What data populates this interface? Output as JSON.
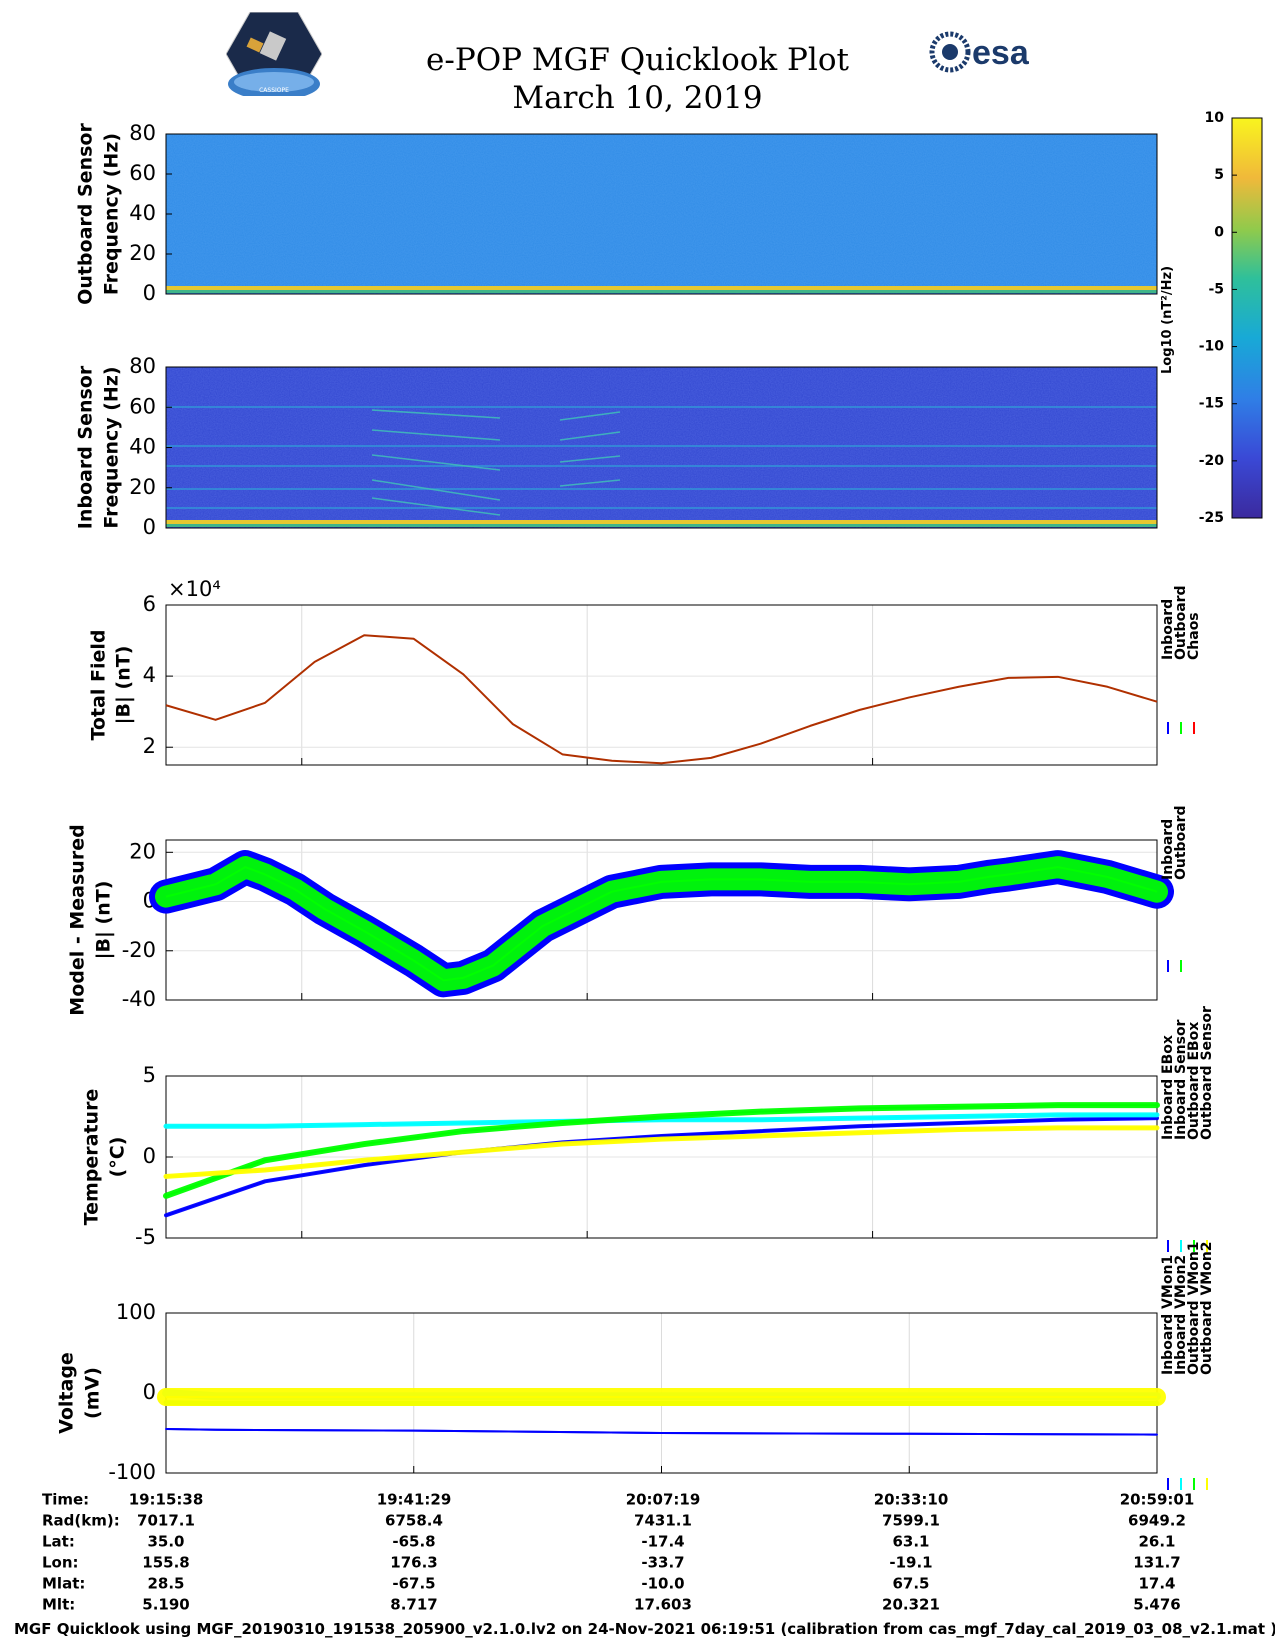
{
  "header": {
    "title": "e-POP MGF Quicklook Plot",
    "date": "March 10, 2019",
    "logo_left_text": "CASSIOPE",
    "logo_right_text": "esa"
  },
  "colors": {
    "inboard": "#0000ff",
    "outboard": "#00ff00",
    "chaos": "#ff0000",
    "cyan": "#00ffff",
    "yellow": "#ffff00",
    "field_line": "#b03000"
  },
  "colorbar": {
    "label": "Log10 (nT²/Hz)",
    "ticks": [
      "10",
      "5",
      "0",
      "-5",
      "-10",
      "-15",
      "-20",
      "-25"
    ],
    "range": [
      -25,
      10
    ]
  },
  "chart_data": [
    {
      "id": "outboard_spectrogram",
      "type": "heatmap",
      "ylabel": [
        "Outboard Sensor",
        "Frequency (Hz)"
      ],
      "yticks": [
        "0",
        "20",
        "40",
        "60",
        "80"
      ],
      "ylim": [
        0,
        80
      ]
    },
    {
      "id": "inboard_spectrogram",
      "type": "heatmap",
      "ylabel": [
        "Inboard Sensor",
        "Frequency (Hz)"
      ],
      "yticks": [
        "0",
        "20",
        "40",
        "60",
        "80"
      ],
      "ylim": [
        0,
        80
      ]
    },
    {
      "id": "total_field",
      "type": "line",
      "ylabel": [
        "Total Field",
        "|B| (nT)"
      ],
      "yticks": [
        "2",
        "4",
        "6"
      ],
      "ylim": [
        1.5,
        6
      ],
      "exponent": "×10⁴",
      "x_fraction": [
        0,
        0.05,
        0.1,
        0.15,
        0.2,
        0.25,
        0.3,
        0.35,
        0.4,
        0.45,
        0.5,
        0.55,
        0.6,
        0.65,
        0.7,
        0.75,
        0.8,
        0.85,
        0.9,
        0.95,
        1.0
      ],
      "values": [
        3.18,
        2.77,
        3.25,
        4.4,
        5.15,
        5.05,
        4.05,
        2.65,
        1.8,
        1.62,
        1.55,
        1.7,
        2.1,
        2.6,
        3.05,
        3.4,
        3.7,
        3.95,
        3.98,
        3.7,
        3.28
      ],
      "legend": [
        "Inboard",
        "Outboard",
        "Chaos"
      ]
    },
    {
      "id": "model_minus_measured",
      "type": "line",
      "ylabel": [
        "Model - Measured",
        "|B| (nT)"
      ],
      "yticks": [
        "-40",
        "-20",
        "0",
        "20"
      ],
      "ylim": [
        -40,
        25
      ],
      "x_fraction": [
        0,
        0.05,
        0.08,
        0.1,
        0.13,
        0.16,
        0.2,
        0.25,
        0.28,
        0.3,
        0.33,
        0.38,
        0.45,
        0.5,
        0.55,
        0.6,
        0.65,
        0.7,
        0.75,
        0.8,
        0.83,
        0.85,
        0.9,
        0.95,
        1.0
      ],
      "values": [
        2,
        7,
        14,
        11,
        5,
        -3,
        -12,
        -24,
        -32,
        -31,
        -26,
        -10,
        4,
        8,
        9,
        9,
        8,
        8,
        7,
        8,
        10,
        11,
        14,
        10,
        4
      ],
      "legend": [
        "Inboard",
        "Outboard"
      ]
    },
    {
      "id": "temperature",
      "type": "line",
      "ylabel": [
        "Temperature",
        "(°C)"
      ],
      "yticks": [
        "-5",
        "0",
        "5"
      ],
      "ylim": [
        -5,
        5
      ],
      "x_fraction": [
        0,
        0.1,
        0.2,
        0.3,
        0.4,
        0.5,
        0.6,
        0.7,
        0.8,
        0.9,
        1.0
      ],
      "series": [
        {
          "name": "Inboard EBox",
          "color": "blue",
          "values": [
            -3.6,
            -1.5,
            -0.5,
            0.3,
            0.9,
            1.3,
            1.6,
            1.9,
            2.1,
            2.3,
            2.4
          ]
        },
        {
          "name": "Inboard Sensor",
          "color": "cyan",
          "values": [
            1.9,
            1.9,
            2.0,
            2.1,
            2.2,
            2.3,
            2.3,
            2.4,
            2.5,
            2.6,
            2.6
          ]
        },
        {
          "name": "Outboard EBox",
          "color": "green",
          "values": [
            -2.4,
            -0.2,
            0.8,
            1.6,
            2.1,
            2.5,
            2.8,
            3.0,
            3.1,
            3.2,
            3.2
          ]
        },
        {
          "name": "Outboard Sensor",
          "color": "yellow",
          "values": [
            -1.2,
            -0.8,
            -0.2,
            0.3,
            0.8,
            1.1,
            1.3,
            1.5,
            1.7,
            1.8,
            1.8
          ]
        }
      ]
    },
    {
      "id": "voltage",
      "type": "line",
      "ylabel": [
        "Voltage",
        "(mV)"
      ],
      "yticks": [
        "-100",
        "0",
        "100"
      ],
      "ylim": [
        -100,
        100
      ],
      "x_fraction": [
        0,
        0.05,
        0.25,
        0.5,
        0.75,
        1.0
      ],
      "series": [
        {
          "name": "Inboard VMon1",
          "color": "blue",
          "values": [
            -45,
            -46,
            -47,
            -50,
            -51,
            -52
          ]
        },
        {
          "name": "Inboard VMon2",
          "color": "cyan",
          "values": [
            0,
            -4,
            -4,
            -4,
            -4,
            -4
          ]
        },
        {
          "name": "Outboard VMon1",
          "color": "green",
          "values": [
            -12,
            -13,
            -13,
            -13,
            -13,
            -13
          ]
        },
        {
          "name": "Outboard VMon2",
          "color": "yellow",
          "values": [
            -5,
            -5,
            -5,
            -5,
            -5,
            -5
          ]
        }
      ]
    }
  ],
  "axis_table": {
    "row_labels": [
      "Time:",
      "Rad(km):",
      "Lat:",
      "Lon:",
      "Mlat:",
      "Mlt:"
    ],
    "columns": [
      [
        "19:15:38",
        "7017.1",
        "35.0",
        "155.8",
        "28.5",
        "5.190"
      ],
      [
        "19:41:29",
        "6758.4",
        "-65.8",
        "176.3",
        "-67.5",
        "8.717"
      ],
      [
        "20:07:19",
        "7431.1",
        "-17.4",
        "-33.7",
        "-10.0",
        "17.603"
      ],
      [
        "20:33:10",
        "7599.1",
        "63.1",
        "-19.1",
        "67.5",
        "20.321"
      ],
      [
        "20:59:01",
        "6949.2",
        "26.1",
        "131.7",
        "17.4",
        "5.476"
      ]
    ]
  },
  "footer": "MGF Quicklook using MGF_20190310_191538_205900_v2.1.0.lv2 on 24-Nov-2021 06:19:51 (calibration from cas_mgf_7day_cal_2019_03_08_v2.1.mat )"
}
